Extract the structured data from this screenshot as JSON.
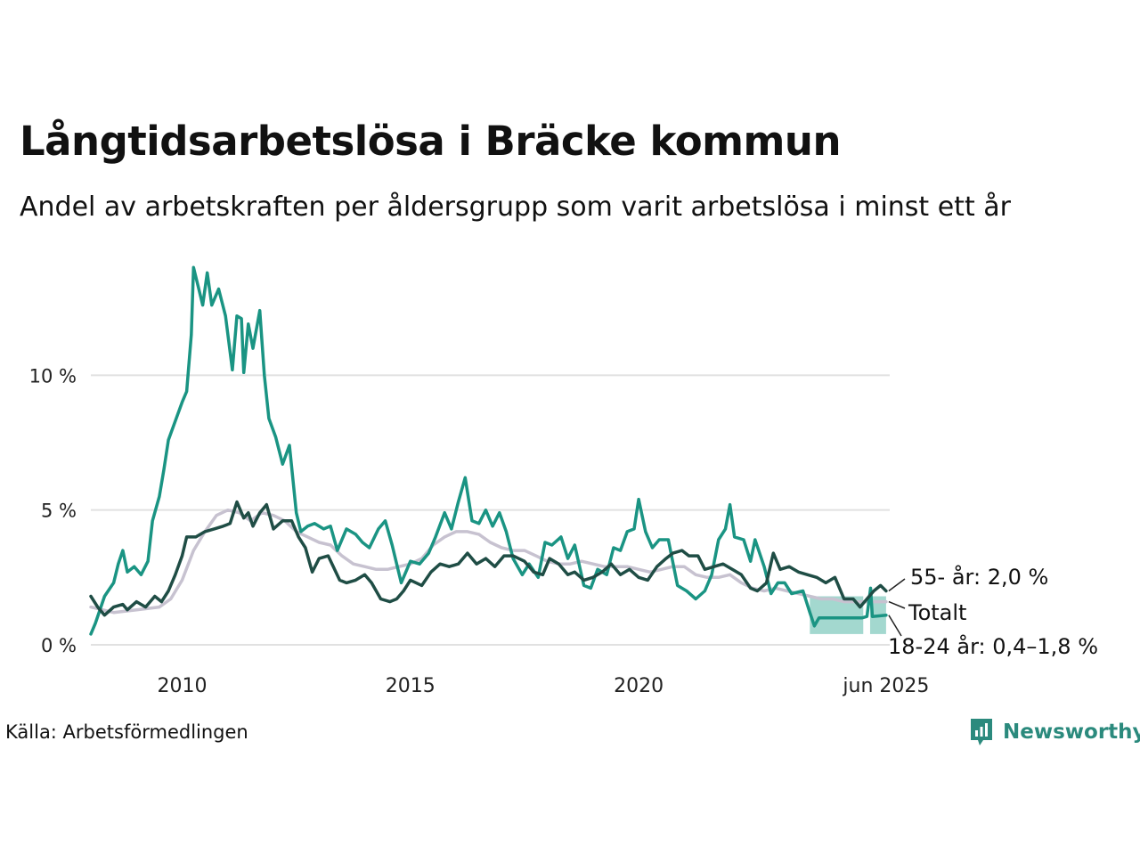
{
  "title": "Långtidsarbetslösa i Bräcke kommun",
  "subtitle": "Andel av arbetskraften per åldersgrupp som varit arbetslösa i minst ett år",
  "source": "Källa: Arbetsförmedlingen",
  "brand": "Newsworthy",
  "colors": {
    "young": "#1a9483",
    "young_band": "#a3d8cf",
    "old": "#1f4d45",
    "total": "#c7c2d0",
    "grid": "#e1e1e1",
    "brand": "#2b8a7d"
  },
  "chart_data": {
    "type": "line",
    "title": "Långtidsarbetslösa i Bräcke kommun",
    "subtitle": "Andel av arbetskraften per åldersgrupp som varit arbetslösa i minst ett år",
    "x_unit": "year",
    "xlim": [
      2008.0,
      2025.5
    ],
    "ylim": [
      0,
      15
    ],
    "y_ticks": [
      {
        "value": 0,
        "label": "0 %"
      },
      {
        "value": 5,
        "label": "5 %"
      },
      {
        "value": 10,
        "label": "10 %"
      }
    ],
    "x_ticks": [
      {
        "value": 2010,
        "label": "2010"
      },
      {
        "value": 2015,
        "label": "2015"
      },
      {
        "value": 2020,
        "label": "2020"
      },
      {
        "value": 2025.42,
        "label": "jun 2025"
      }
    ],
    "grid": true,
    "series": [
      {
        "key": "total",
        "name": "Totalt",
        "end_label": "Totalt",
        "points": [
          [
            2008.0,
            1.4
          ],
          [
            2008.5,
            1.2
          ],
          [
            2009.0,
            1.3
          ],
          [
            2009.5,
            1.4
          ],
          [
            2009.75,
            1.7
          ],
          [
            2010.0,
            2.4
          ],
          [
            2010.25,
            3.5
          ],
          [
            2010.5,
            4.2
          ],
          [
            2010.75,
            4.8
          ],
          [
            2011.0,
            5.0
          ],
          [
            2011.25,
            4.9
          ],
          [
            2011.5,
            4.6
          ],
          [
            2011.75,
            4.9
          ],
          [
            2012.0,
            4.8
          ],
          [
            2012.25,
            4.6
          ],
          [
            2012.5,
            4.2
          ],
          [
            2012.75,
            4.0
          ],
          [
            2013.0,
            3.8
          ],
          [
            2013.25,
            3.7
          ],
          [
            2013.5,
            3.3
          ],
          [
            2013.75,
            3.0
          ],
          [
            2014.0,
            2.9
          ],
          [
            2014.25,
            2.8
          ],
          [
            2014.5,
            2.8
          ],
          [
            2014.75,
            2.9
          ],
          [
            2015.0,
            3.0
          ],
          [
            2015.25,
            3.2
          ],
          [
            2015.5,
            3.7
          ],
          [
            2015.75,
            4.0
          ],
          [
            2016.0,
            4.2
          ],
          [
            2016.25,
            4.2
          ],
          [
            2016.5,
            4.1
          ],
          [
            2016.75,
            3.8
          ],
          [
            2017.0,
            3.6
          ],
          [
            2017.25,
            3.5
          ],
          [
            2017.5,
            3.5
          ],
          [
            2017.75,
            3.3
          ],
          [
            2018.0,
            3.1
          ],
          [
            2018.25,
            3.0
          ],
          [
            2018.5,
            3.0
          ],
          [
            2018.75,
            3.1
          ],
          [
            2019.0,
            3.0
          ],
          [
            2019.25,
            2.9
          ],
          [
            2019.5,
            2.9
          ],
          [
            2019.75,
            2.9
          ],
          [
            2020.0,
            2.8
          ],
          [
            2020.25,
            2.7
          ],
          [
            2020.5,
            2.8
          ],
          [
            2020.75,
            2.9
          ],
          [
            2021.0,
            2.9
          ],
          [
            2021.25,
            2.6
          ],
          [
            2021.5,
            2.5
          ],
          [
            2021.75,
            2.5
          ],
          [
            2022.0,
            2.6
          ],
          [
            2022.25,
            2.3
          ],
          [
            2022.5,
            2.1
          ],
          [
            2022.75,
            2.0
          ],
          [
            2023.0,
            2.1
          ],
          [
            2023.25,
            2.0
          ],
          [
            2023.5,
            1.9
          ],
          [
            2023.75,
            1.8
          ],
          [
            2024.0,
            1.7
          ],
          [
            2024.25,
            1.7
          ],
          [
            2024.5,
            1.6
          ],
          [
            2024.75,
            1.6
          ],
          [
            2025.0,
            1.6
          ],
          [
            2025.25,
            1.6
          ],
          [
            2025.42,
            1.6
          ]
        ]
      },
      {
        "key": "young",
        "name": "18-24 år",
        "end_label": "18-24 år: 0,4–1,8 %",
        "points": [
          [
            2008.0,
            0.4
          ],
          [
            2008.1,
            0.8
          ],
          [
            2008.3,
            1.8
          ],
          [
            2008.5,
            2.3
          ],
          [
            2008.6,
            3.0
          ],
          [
            2008.7,
            3.5
          ],
          [
            2008.8,
            2.7
          ],
          [
            2008.95,
            2.9
          ],
          [
            2009.1,
            2.6
          ],
          [
            2009.25,
            3.1
          ],
          [
            2009.35,
            4.6
          ],
          [
            2009.5,
            5.5
          ],
          [
            2009.6,
            6.5
          ],
          [
            2009.7,
            7.6
          ],
          [
            2009.85,
            8.3
          ],
          [
            2010.0,
            9.0
          ],
          [
            2010.1,
            9.4
          ],
          [
            2010.2,
            11.5
          ],
          [
            2010.25,
            14.0
          ],
          [
            2010.35,
            13.3
          ],
          [
            2010.45,
            12.6
          ],
          [
            2010.55,
            13.8
          ],
          [
            2010.65,
            12.6
          ],
          [
            2010.8,
            13.2
          ],
          [
            2010.95,
            12.2
          ],
          [
            2011.1,
            10.2
          ],
          [
            2011.2,
            12.2
          ],
          [
            2011.3,
            12.1
          ],
          [
            2011.35,
            10.1
          ],
          [
            2011.45,
            11.9
          ],
          [
            2011.55,
            11.0
          ],
          [
            2011.7,
            12.4
          ],
          [
            2011.8,
            10.0
          ],
          [
            2011.9,
            8.4
          ],
          [
            2012.05,
            7.7
          ],
          [
            2012.2,
            6.7
          ],
          [
            2012.35,
            7.4
          ],
          [
            2012.5,
            4.9
          ],
          [
            2012.6,
            4.2
          ],
          [
            2012.75,
            4.4
          ],
          [
            2012.9,
            4.5
          ],
          [
            2013.1,
            4.3
          ],
          [
            2013.25,
            4.4
          ],
          [
            2013.4,
            3.5
          ],
          [
            2013.6,
            4.3
          ],
          [
            2013.8,
            4.1
          ],
          [
            2013.95,
            3.8
          ],
          [
            2014.1,
            3.6
          ],
          [
            2014.3,
            4.3
          ],
          [
            2014.45,
            4.6
          ],
          [
            2014.6,
            3.7
          ],
          [
            2014.8,
            2.3
          ],
          [
            2015.0,
            3.1
          ],
          [
            2015.2,
            3.0
          ],
          [
            2015.4,
            3.4
          ],
          [
            2015.55,
            4.0
          ],
          [
            2015.75,
            4.9
          ],
          [
            2015.9,
            4.3
          ],
          [
            2016.05,
            5.3
          ],
          [
            2016.2,
            6.2
          ],
          [
            2016.35,
            4.6
          ],
          [
            2016.5,
            4.5
          ],
          [
            2016.65,
            5.0
          ],
          [
            2016.8,
            4.4
          ],
          [
            2016.95,
            4.9
          ],
          [
            2017.1,
            4.2
          ],
          [
            2017.25,
            3.2
          ],
          [
            2017.45,
            2.6
          ],
          [
            2017.6,
            3.0
          ],
          [
            2017.8,
            2.5
          ],
          [
            2017.95,
            3.8
          ],
          [
            2018.1,
            3.7
          ],
          [
            2018.3,
            4.0
          ],
          [
            2018.45,
            3.2
          ],
          [
            2018.6,
            3.7
          ],
          [
            2018.8,
            2.2
          ],
          [
            2018.95,
            2.1
          ],
          [
            2019.1,
            2.8
          ],
          [
            2019.3,
            2.6
          ],
          [
            2019.45,
            3.6
          ],
          [
            2019.6,
            3.5
          ],
          [
            2019.75,
            4.2
          ],
          [
            2019.9,
            4.3
          ],
          [
            2020.0,
            5.4
          ],
          [
            2020.15,
            4.2
          ],
          [
            2020.3,
            3.6
          ],
          [
            2020.45,
            3.9
          ],
          [
            2020.65,
            3.9
          ],
          [
            2020.85,
            2.2
          ],
          [
            2021.05,
            2.0
          ],
          [
            2021.25,
            1.7
          ],
          [
            2021.45,
            2.0
          ],
          [
            2021.6,
            2.6
          ],
          [
            2021.75,
            3.9
          ],
          [
            2021.9,
            4.3
          ],
          [
            2022.0,
            5.2
          ],
          [
            2022.1,
            4.0
          ],
          [
            2022.3,
            3.9
          ],
          [
            2022.45,
            3.1
          ],
          [
            2022.55,
            3.9
          ],
          [
            2022.75,
            2.9
          ],
          [
            2022.9,
            1.9
          ],
          [
            2023.05,
            2.3
          ],
          [
            2023.2,
            2.3
          ],
          [
            2023.35,
            1.9
          ],
          [
            2023.6,
            2.0
          ],
          [
            2023.75,
            1.2
          ],
          [
            2023.85,
            0.7
          ],
          [
            2023.95,
            1.0
          ],
          [
            2024.2,
            1.0
          ],
          [
            2024.5,
            1.0
          ],
          [
            2024.7,
            1.0
          ],
          [
            2024.9,
            1.0
          ],
          [
            2025.0,
            1.05
          ],
          [
            2025.08,
            2.1
          ],
          [
            2025.12,
            1.05
          ],
          [
            2025.42,
            1.1
          ]
        ],
        "uncertainty_band": {
          "x_start": 2023.75,
          "x_end": 2025.42,
          "y_low": 0.4,
          "y_high": 1.8,
          "gaps": [
            [
              2024.92,
              2025.07
            ]
          ]
        }
      },
      {
        "key": "old",
        "name": "55- år",
        "end_label": "55- år: 2,0 %",
        "points": [
          [
            2008.0,
            1.8
          ],
          [
            2008.15,
            1.4
          ],
          [
            2008.3,
            1.1
          ],
          [
            2008.5,
            1.4
          ],
          [
            2008.7,
            1.5
          ],
          [
            2008.8,
            1.3
          ],
          [
            2009.0,
            1.6
          ],
          [
            2009.2,
            1.4
          ],
          [
            2009.4,
            1.8
          ],
          [
            2009.55,
            1.6
          ],
          [
            2009.7,
            2.0
          ],
          [
            2009.85,
            2.6
          ],
          [
            2010.0,
            3.3
          ],
          [
            2010.1,
            4.0
          ],
          [
            2010.3,
            4.0
          ],
          [
            2010.5,
            4.2
          ],
          [
            2010.7,
            4.3
          ],
          [
            2010.9,
            4.4
          ],
          [
            2011.05,
            4.5
          ],
          [
            2011.2,
            5.3
          ],
          [
            2011.35,
            4.7
          ],
          [
            2011.45,
            4.9
          ],
          [
            2011.55,
            4.4
          ],
          [
            2011.7,
            4.9
          ],
          [
            2011.85,
            5.2
          ],
          [
            2012.0,
            4.3
          ],
          [
            2012.2,
            4.6
          ],
          [
            2012.4,
            4.6
          ],
          [
            2012.55,
            4.0
          ],
          [
            2012.7,
            3.6
          ],
          [
            2012.85,
            2.7
          ],
          [
            2013.0,
            3.2
          ],
          [
            2013.2,
            3.3
          ],
          [
            2013.45,
            2.4
          ],
          [
            2013.6,
            2.3
          ],
          [
            2013.8,
            2.4
          ],
          [
            2014.0,
            2.6
          ],
          [
            2014.15,
            2.3
          ],
          [
            2014.35,
            1.7
          ],
          [
            2014.55,
            1.6
          ],
          [
            2014.7,
            1.7
          ],
          [
            2014.85,
            2.0
          ],
          [
            2015.0,
            2.4
          ],
          [
            2015.25,
            2.2
          ],
          [
            2015.45,
            2.7
          ],
          [
            2015.65,
            3.0
          ],
          [
            2015.85,
            2.9
          ],
          [
            2016.05,
            3.0
          ],
          [
            2016.25,
            3.4
          ],
          [
            2016.45,
            3.0
          ],
          [
            2016.65,
            3.2
          ],
          [
            2016.85,
            2.9
          ],
          [
            2017.05,
            3.3
          ],
          [
            2017.25,
            3.3
          ],
          [
            2017.5,
            3.1
          ],
          [
            2017.7,
            2.7
          ],
          [
            2017.9,
            2.6
          ],
          [
            2018.05,
            3.2
          ],
          [
            2018.25,
            3.0
          ],
          [
            2018.45,
            2.6
          ],
          [
            2018.6,
            2.7
          ],
          [
            2018.8,
            2.4
          ],
          [
            2019.0,
            2.5
          ],
          [
            2019.2,
            2.7
          ],
          [
            2019.4,
            3.0
          ],
          [
            2019.6,
            2.6
          ],
          [
            2019.8,
            2.8
          ],
          [
            2020.0,
            2.5
          ],
          [
            2020.2,
            2.4
          ],
          [
            2020.4,
            2.9
          ],
          [
            2020.6,
            3.2
          ],
          [
            2020.75,
            3.4
          ],
          [
            2020.95,
            3.5
          ],
          [
            2021.1,
            3.3
          ],
          [
            2021.3,
            3.3
          ],
          [
            2021.45,
            2.8
          ],
          [
            2021.65,
            2.9
          ],
          [
            2021.85,
            3.0
          ],
          [
            2022.05,
            2.8
          ],
          [
            2022.25,
            2.6
          ],
          [
            2022.45,
            2.1
          ],
          [
            2022.6,
            2.0
          ],
          [
            2022.8,
            2.3
          ],
          [
            2022.95,
            3.4
          ],
          [
            2023.1,
            2.8
          ],
          [
            2023.3,
            2.9
          ],
          [
            2023.5,
            2.7
          ],
          [
            2023.7,
            2.6
          ],
          [
            2023.9,
            2.5
          ],
          [
            2024.1,
            2.3
          ],
          [
            2024.3,
            2.5
          ],
          [
            2024.5,
            1.7
          ],
          [
            2024.7,
            1.7
          ],
          [
            2024.85,
            1.4
          ],
          [
            2025.0,
            1.7
          ],
          [
            2025.15,
            2.0
          ],
          [
            2025.3,
            2.2
          ],
          [
            2025.42,
            2.0
          ]
        ]
      }
    ]
  }
}
